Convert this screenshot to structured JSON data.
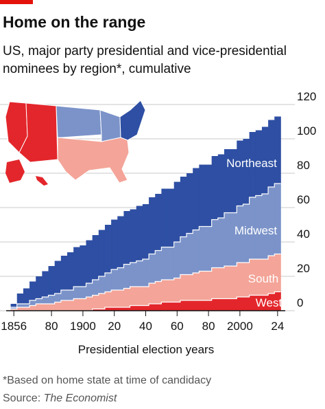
{
  "chart_data": {
    "type": "stacked-step-area",
    "title": "Home on the range",
    "subtitle": [
      "US, major party presidential and vice-presidential",
      "nominees by region*, cumulative"
    ],
    "x_label": "Presidential election years",
    "footnote": "*Based on home state at time of candidacy",
    "source": {
      "label": "Source:",
      "name": "The Economist"
    },
    "x": [
      1856,
      1860,
      1864,
      1868,
      1872,
      1876,
      1880,
      1884,
      1888,
      1892,
      1896,
      1900,
      1904,
      1908,
      1912,
      1916,
      1920,
      1924,
      1928,
      1932,
      1936,
      1940,
      1944,
      1948,
      1952,
      1956,
      1960,
      1964,
      1968,
      1972,
      1976,
      1980,
      1984,
      1988,
      1992,
      1996,
      2000,
      2004,
      2008,
      2012,
      2016,
      2020,
      2024
    ],
    "xlim": [
      1852,
      2028
    ],
    "xticks": [
      1856,
      {
        "value": 1880,
        "label": "80"
      },
      1900,
      {
        "value": 1920,
        "label": "20"
      },
      {
        "value": 1940,
        "label": "40"
      },
      {
        "value": 1960,
        "label": "60"
      },
      {
        "value": 1980,
        "label": "80"
      },
      2000,
      {
        "value": 2024,
        "label": "24"
      }
    ],
    "ylim": [
      0,
      120
    ],
    "yticks": [
      0,
      20,
      40,
      60,
      80,
      100,
      120
    ],
    "grid": true,
    "series": [
      {
        "name": "West",
        "color": "#e3262b",
        "values": [
          0,
          0,
          0,
          0,
          0,
          0,
          0,
          0,
          0,
          0,
          0,
          0,
          0,
          1,
          1,
          2,
          2,
          2,
          2,
          3,
          3,
          3,
          4,
          4,
          5,
          5,
          5,
          6,
          6,
          6,
          6,
          6,
          7,
          7,
          7,
          7,
          8,
          8,
          9,
          9,
          9,
          10,
          11
        ]
      },
      {
        "name": "South",
        "color": "#f4a498",
        "values": [
          1,
          2,
          2,
          3,
          4,
          4,
          4,
          5,
          6,
          6,
          7,
          7,
          8,
          8,
          9,
          9,
          10,
          10,
          11,
          11,
          11,
          11,
          12,
          13,
          13,
          13,
          14,
          15,
          15,
          16,
          17,
          17,
          18,
          18,
          19,
          19,
          20,
          20,
          21,
          21,
          21,
          22,
          22
        ]
      },
      {
        "name": "Midwest",
        "color": "#7b93c9",
        "values": [
          1,
          2,
          2,
          3,
          3,
          4,
          5,
          5,
          6,
          6,
          7,
          7,
          8,
          9,
          10,
          11,
          12,
          13,
          14,
          14,
          15,
          16,
          17,
          18,
          19,
          19,
          21,
          22,
          24,
          25,
          26,
          26,
          28,
          29,
          31,
          31,
          33,
          34,
          36,
          37,
          38,
          40,
          41
        ]
      },
      {
        "name": "Northeast",
        "color": "#2e4fa3",
        "values": [
          2,
          6,
          9,
          11,
          13,
          15,
          17,
          19,
          20,
          22,
          23,
          24,
          25,
          26,
          27,
          28,
          29,
          30,
          31,
          31,
          32,
          32,
          33,
          33,
          34,
          34,
          35,
          35,
          35,
          36,
          36,
          36,
          37,
          37,
          37,
          37,
          38,
          38,
          38,
          38,
          39,
          39,
          39
        ]
      }
    ]
  }
}
